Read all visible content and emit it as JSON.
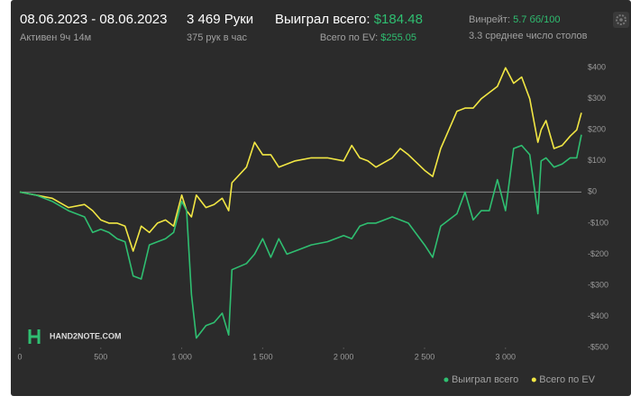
{
  "header": {
    "date_range": "08.06.2023 - 08.06.2023",
    "active": "Активен 9ч 14м",
    "hands": "3 469 Руки",
    "hands_per_hour": "375 рук в час",
    "won_label": "Выиграл всего:",
    "won_value": "$184.48",
    "ev_label": "Всего по EV:",
    "ev_value": "$255.05",
    "winrate_label": "Винрейт:",
    "winrate_value": "5.7 бб/100",
    "tables": "3.3 среднее число столов",
    "logo": "HAND2NOTE.COM"
  },
  "chart_data": {
    "type": "line",
    "x": [
      0,
      100,
      200,
      300,
      400,
      450,
      500,
      550,
      600,
      650,
      700,
      750,
      800,
      850,
      900,
      950,
      1000,
      1030,
      1060,
      1090,
      1150,
      1200,
      1250,
      1290,
      1310,
      1400,
      1450,
      1500,
      1550,
      1600,
      1650,
      1700,
      1800,
      1900,
      2000,
      2050,
      2100,
      2150,
      2200,
      2300,
      2350,
      2400,
      2500,
      2550,
      2600,
      2650,
      2700,
      2750,
      2800,
      2850,
      2900,
      2950,
      3000,
      3050,
      3100,
      3150,
      3200,
      3220,
      3250,
      3300,
      3350,
      3400,
      3440,
      3469
    ],
    "series": [
      {
        "name": "Выиграл всего",
        "color": "#2fbf71",
        "values": [
          0,
          -10,
          -30,
          -60,
          -80,
          -130,
          -120,
          -130,
          -150,
          -160,
          -270,
          -280,
          -170,
          -160,
          -150,
          -130,
          -30,
          -60,
          -330,
          -470,
          -430,
          -420,
          -390,
          -460,
          -250,
          -230,
          -200,
          -150,
          -210,
          -150,
          -200,
          -190,
          -170,
          -160,
          -140,
          -150,
          -110,
          -100,
          -100,
          -80,
          -90,
          -100,
          -170,
          -210,
          -110,
          -90,
          -70,
          0,
          -90,
          -60,
          -60,
          40,
          -60,
          140,
          150,
          120,
          -70,
          100,
          110,
          80,
          90,
          110,
          110,
          184.48
        ]
      },
      {
        "name": "Всего по EV",
        "color": "#f2e744",
        "values": [
          0,
          -10,
          -20,
          -50,
          -40,
          -60,
          -90,
          -100,
          -100,
          -110,
          -190,
          -110,
          -130,
          -100,
          -90,
          -110,
          -10,
          -60,
          -80,
          -10,
          -50,
          -40,
          -20,
          -60,
          30,
          80,
          160,
          120,
          120,
          80,
          90,
          100,
          110,
          110,
          100,
          150,
          110,
          100,
          80,
          110,
          140,
          120,
          70,
          50,
          140,
          200,
          260,
          270,
          270,
          300,
          320,
          340,
          400,
          350,
          370,
          300,
          160,
          200,
          230,
          140,
          150,
          180,
          200,
          255.05
        ]
      }
    ],
    "xlim": [
      0,
      3469
    ],
    "xticks": [
      0,
      500,
      {
        "value": 1000,
        "label": "1 000"
      },
      {
        "value": 1500,
        "label": "1 500"
      },
      {
        "value": 2000,
        "label": "2 000"
      },
      {
        "value": 2500,
        "label": "2 500"
      },
      {
        "value": 3000,
        "label": "3 000"
      }
    ],
    "ylim": [
      -500,
      450
    ],
    "yticks": [
      {
        "value": 400,
        "label": "$400"
      },
      {
        "value": 300,
        "label": "$300"
      },
      {
        "value": 200,
        "label": "$200"
      },
      {
        "value": 100,
        "label": "$100"
      },
      {
        "value": 0,
        "label": "$0"
      },
      {
        "value": -100,
        "label": "-$100"
      },
      {
        "value": -200,
        "label": "-$200"
      },
      {
        "value": -300,
        "label": "-$300"
      },
      {
        "value": -400,
        "label": "-$400"
      },
      {
        "value": -500,
        "label": "-$500"
      }
    ],
    "grid": false,
    "zero_line": true,
    "legend": "lower right"
  }
}
